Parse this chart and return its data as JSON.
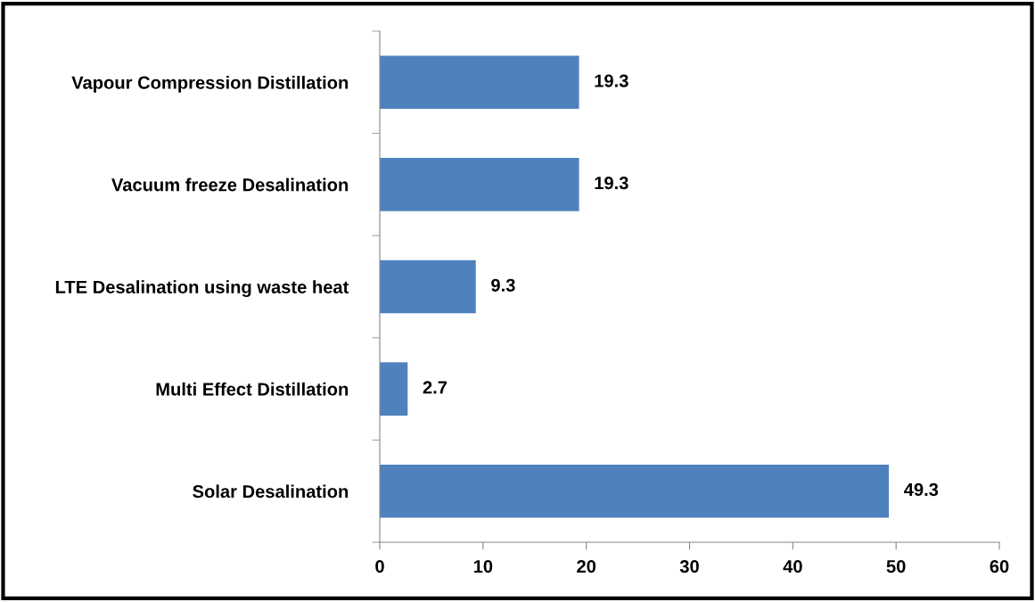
{
  "chart_data": {
    "type": "bar",
    "orientation": "horizontal",
    "categories": [
      "Vapour Compression Distillation",
      "Vacuum freeze Desalination",
      "LTE Desalination using waste heat",
      "Multi Effect Distillation",
      "Solar Desalination"
    ],
    "values": [
      19.3,
      19.3,
      9.3,
      2.7,
      49.3
    ],
    "color": "#4f81bd",
    "xlim": [
      0,
      60
    ],
    "xticks": [
      0,
      10,
      20,
      30,
      40,
      50,
      60
    ],
    "data_labels": true,
    "grid": false
  }
}
